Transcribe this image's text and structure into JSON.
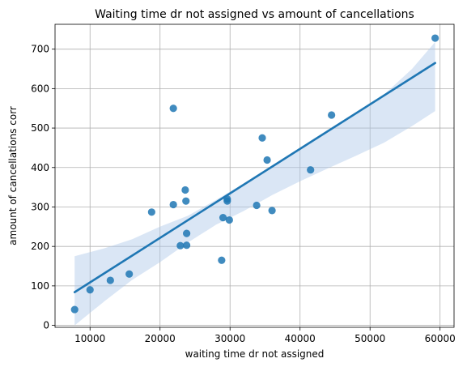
{
  "chart_data": {
    "type": "scatter",
    "title": "Waiting time dr not assigned vs amount of cancellations",
    "xlabel": "waiting time dr not assigned",
    "ylabel": "amount of cancellations corr",
    "xlim": [
      5000,
      62000
    ],
    "ylim": [
      -5,
      763
    ],
    "xticks": [
      10000,
      20000,
      30000,
      40000,
      50000,
      60000
    ],
    "yticks": [
      0,
      100,
      200,
      300,
      400,
      500,
      600,
      700
    ],
    "grid": true,
    "colors": {
      "points": "#1f77b4",
      "line": "#1f77b4",
      "band": "#aec7e8"
    },
    "points": [
      {
        "x": 7800,
        "y": 40
      },
      {
        "x": 10000,
        "y": 90
      },
      {
        "x": 12900,
        "y": 114
      },
      {
        "x": 15600,
        "y": 130
      },
      {
        "x": 18800,
        "y": 287
      },
      {
        "x": 21900,
        "y": 306
      },
      {
        "x": 21900,
        "y": 550
      },
      {
        "x": 22900,
        "y": 202
      },
      {
        "x": 23600,
        "y": 343
      },
      {
        "x": 23700,
        "y": 315
      },
      {
        "x": 23800,
        "y": 233
      },
      {
        "x": 23800,
        "y": 203
      },
      {
        "x": 28800,
        "y": 165
      },
      {
        "x": 29000,
        "y": 273
      },
      {
        "x": 29600,
        "y": 320
      },
      {
        "x": 29600,
        "y": 315
      },
      {
        "x": 29900,
        "y": 267
      },
      {
        "x": 33800,
        "y": 304
      },
      {
        "x": 34600,
        "y": 475
      },
      {
        "x": 35300,
        "y": 419
      },
      {
        "x": 36000,
        "y": 291
      },
      {
        "x": 41500,
        "y": 394
      },
      {
        "x": 44500,
        "y": 533
      },
      {
        "x": 59300,
        "y": 728
      }
    ],
    "regression": {
      "x": [
        7800,
        59300
      ],
      "y": [
        84,
        665
      ]
    },
    "confidence_band": {
      "x": [
        7800,
        12000,
        16000,
        20000,
        24000,
        28000,
        32000,
        36000,
        40000,
        44000,
        48000,
        52000,
        56000,
        59300
      ],
      "upper": [
        175,
        195,
        218,
        250,
        278,
        318,
        360,
        400,
        445,
        492,
        535,
        585,
        650,
        718
      ],
      "lower": [
        0,
        60,
        115,
        160,
        210,
        255,
        290,
        330,
        365,
        398,
        430,
        463,
        505,
        543
      ]
    }
  }
}
